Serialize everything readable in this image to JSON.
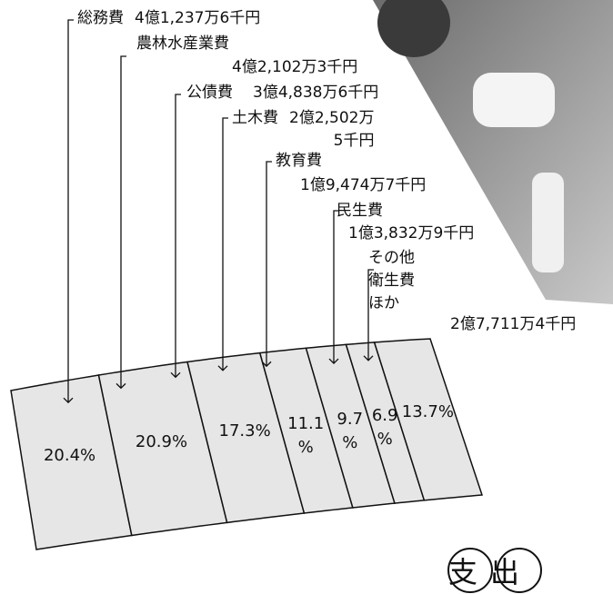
{
  "chart_data": {
    "type": "fan",
    "title": "支出",
    "categories": [
      "総務費",
      "農林水産業費",
      "公債費",
      "土木費",
      "教育費",
      "民生費",
      "その他\n衛生費\nほか"
    ],
    "amount_labels": [
      "4億1,237万6千円",
      "4億2,102万3千円",
      "3億4,838万6千円",
      "2億2,502万\n5千円",
      "1億9,474万7千円",
      "1億3,832万9千円",
      "2億7,711万4千円"
    ],
    "values": [
      20.4,
      20.9,
      17.3,
      11.1,
      9.7,
      6.9,
      13.7
    ],
    "value_labels": [
      "20.4%",
      "20.9%",
      "17.3%",
      "11.1\n%",
      "9.7\n%",
      "6.9\n%",
      "13.7%"
    ],
    "color": "#e6e6e6"
  }
}
